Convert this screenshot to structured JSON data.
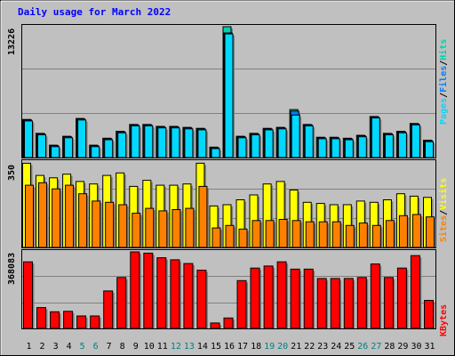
{
  "title": "Daily usage for March 2022",
  "colors": {
    "pages": "#00d8ff",
    "files": "#0080ff",
    "hits": "#00d0b0",
    "visits": "#ffff00",
    "sites": "#ff8000",
    "kbytes": "#ff0000",
    "weekday_label": "#000000",
    "weekend_label": "#008080"
  },
  "chart_data": [
    {
      "type": "bar",
      "panel": "hits-files-pages",
      "ymax_label": "13226",
      "ylim": [
        0,
        13226
      ],
      "legend": [
        "Pages",
        "Files",
        "Hits"
      ],
      "categories": [
        "1",
        "2",
        "3",
        "4",
        "5",
        "6",
        "7",
        "8",
        "9",
        "10",
        "11",
        "12",
        "13",
        "14",
        "15",
        "16",
        "17",
        "18",
        "19",
        "20",
        "21",
        "22",
        "23",
        "24",
        "25",
        "26",
        "27",
        "28",
        "29",
        "30",
        "31"
      ],
      "series": [
        {
          "name": "Pages",
          "values": [
            3700,
            2300,
            1100,
            2000,
            3800,
            1100,
            1800,
            2500,
            3200,
            3200,
            3000,
            3000,
            2900,
            2800,
            900,
            12500,
            2000,
            2300,
            2800,
            2900,
            4300,
            3200,
            1900,
            1900,
            1800,
            2100,
            4000,
            2300,
            2500,
            3300,
            1600
          ]
        },
        {
          "name": "Files",
          "values": [
            3800,
            2400,
            1200,
            2100,
            3900,
            1200,
            1900,
            2600,
            3300,
            3300,
            3100,
            3100,
            3000,
            2900,
            1000,
            12600,
            2100,
            2400,
            2900,
            3000,
            4700,
            3300,
            2000,
            2000,
            1900,
            2200,
            4100,
            2400,
            2600,
            3400,
            1700
          ]
        },
        {
          "name": "Hits",
          "values": [
            3850,
            2450,
            1250,
            2150,
            3950,
            1250,
            1950,
            2650,
            3350,
            3350,
            3150,
            3150,
            3050,
            2950,
            1050,
            13226,
            2150,
            2450,
            2950,
            3050,
            4850,
            3350,
            2050,
            2050,
            1950,
            2250,
            4150,
            2450,
            2650,
            3450,
            1750
          ]
        }
      ]
    },
    {
      "type": "bar",
      "panel": "visits-sites",
      "ymax_label": "350",
      "ylim": [
        0,
        350
      ],
      "legend": [
        "Sites",
        "Visits"
      ],
      "series": [
        {
          "name": "Visits",
          "values": [
            345,
            295,
            285,
            300,
            270,
            260,
            295,
            305,
            250,
            275,
            255,
            255,
            260,
            345,
            170,
            175,
            195,
            215,
            260,
            270,
            235,
            185,
            180,
            175,
            175,
            190,
            185,
            195,
            220,
            210,
            205
          ]
        },
        {
          "name": "Sites",
          "values": [
            255,
            265,
            240,
            255,
            220,
            190,
            185,
            175,
            140,
            160,
            150,
            155,
            160,
            250,
            80,
            90,
            75,
            110,
            110,
            115,
            110,
            105,
            105,
            105,
            90,
            100,
            90,
            110,
            130,
            135,
            125
          ]
        }
      ]
    },
    {
      "type": "bar",
      "panel": "kbytes",
      "ymax_label": "368083",
      "ylim": [
        0,
        368083
      ],
      "legend": [
        "KBytes"
      ],
      "series": [
        {
          "name": "KBytes",
          "values": [
            320000,
            100000,
            80000,
            82000,
            60000,
            60000,
            180000,
            245000,
            368083,
            362000,
            340000,
            330000,
            312000,
            280000,
            26000,
            50000,
            230000,
            290000,
            300000,
            320000,
            285000,
            285000,
            240000,
            240000,
            240000,
            245000,
            310000,
            245000,
            290000,
            350000,
            135000
          ]
        }
      ]
    }
  ]
}
